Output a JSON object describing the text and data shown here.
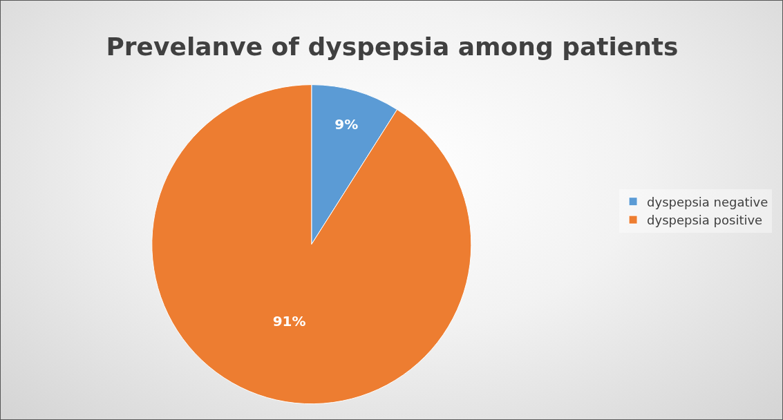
{
  "chart_data": {
    "type": "pie",
    "title": "Prevelanve of dyspepsia among patients",
    "categories": [
      "dyspepsia negative",
      "dyspepsia positive"
    ],
    "values": [
      9,
      91
    ],
    "value_labels": [
      "9%",
      "91%"
    ],
    "colors": [
      "#5b9bd5",
      "#ed7d31"
    ],
    "legend": "right"
  }
}
